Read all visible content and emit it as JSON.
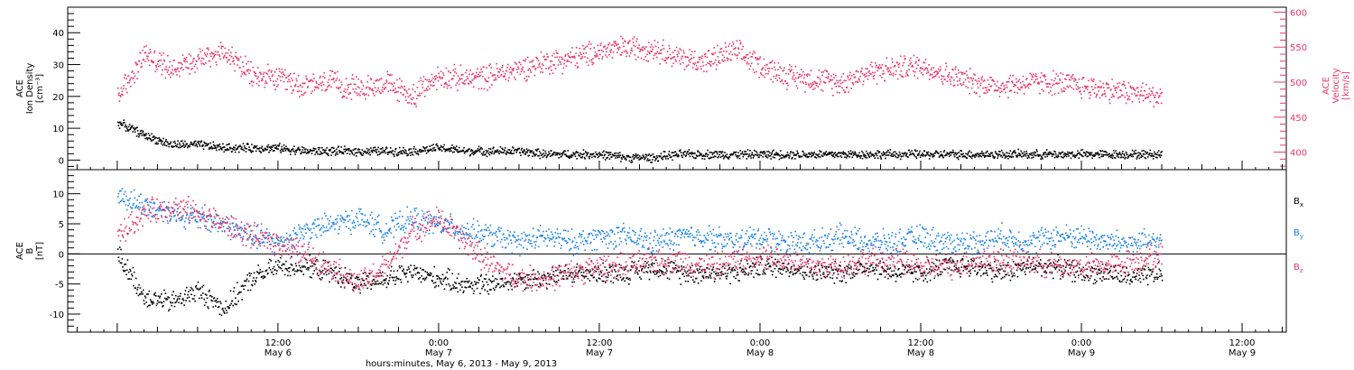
{
  "colors": {
    "axis": "#000000",
    "velocity": "#e8366b",
    "bx": "#000000",
    "by": "#1a82e6",
    "bz": "#e8366b"
  },
  "chart_data": [
    {
      "type": "scatter",
      "panel": "top",
      "ylabel_left": [
        "ACE",
        "Ion Density",
        "[cm⁻³]"
      ],
      "ylabel_right": [
        "ACE",
        "Velocity",
        "[km/s]"
      ],
      "ylim": [
        -3,
        48
      ],
      "y_ticks": [
        "0",
        "10",
        "20",
        "30",
        "40"
      ],
      "y2lim": [
        375,
        607
      ],
      "y2_ticks": [
        "400",
        "450",
        "500",
        "550",
        "600"
      ],
      "grid": false,
      "series": [
        {
          "name": "Ion Density",
          "axis": "left",
          "color": "#000000",
          "x": [
            0,
            2,
            4,
            6,
            8,
            10,
            12,
            14,
            16,
            18,
            20,
            22,
            24,
            26,
            28,
            30,
            32,
            34,
            36,
            38,
            40,
            42,
            44,
            46,
            48,
            50,
            52,
            54,
            56,
            58,
            60,
            62,
            64,
            66,
            68,
            70,
            72,
            74,
            76,
            78
          ],
          "y": [
            12,
            8,
            5,
            5,
            4,
            4,
            4,
            3,
            3,
            3,
            3,
            3,
            4,
            3,
            3,
            3,
            2,
            2,
            2,
            1,
            1,
            2,
            2,
            2,
            2,
            2,
            2,
            2,
            2,
            2,
            2,
            2,
            2,
            2,
            2,
            2,
            2,
            2,
            2,
            2
          ]
        },
        {
          "name": "Velocity",
          "axis": "right",
          "color": "#e8366b",
          "x": [
            0,
            2,
            4,
            6,
            8,
            10,
            12,
            14,
            16,
            18,
            20,
            22,
            24,
            26,
            28,
            30,
            32,
            34,
            36,
            38,
            40,
            42,
            44,
            46,
            48,
            50,
            52,
            54,
            56,
            58,
            60,
            62,
            64,
            66,
            68,
            70,
            72,
            74,
            76,
            78
          ],
          "y": [
            480,
            540,
            520,
            535,
            545,
            510,
            505,
            495,
            500,
            490,
            500,
            480,
            510,
            505,
            510,
            520,
            530,
            535,
            545,
            550,
            550,
            535,
            530,
            545,
            525,
            510,
            505,
            500,
            515,
            520,
            525,
            510,
            500,
            495,
            500,
            500,
            495,
            490,
            485,
            480
          ]
        }
      ]
    },
    {
      "type": "scatter",
      "panel": "bottom",
      "ylabel_left": [
        "ACE",
        "B",
        "[nT]"
      ],
      "ylim": [
        -13,
        14
      ],
      "y_ticks": [
        "-10",
        "-5",
        "0",
        "5",
        "10"
      ],
      "zero_line": true,
      "grid": false,
      "legend_placement": "right",
      "legend": [
        {
          "label": "B",
          "sub": "x",
          "color": "#000000"
        },
        {
          "label": "B",
          "sub": "y",
          "color": "#1a82e6"
        },
        {
          "label": "B",
          "sub": "z",
          "color": "#e8366b"
        }
      ],
      "series": [
        {
          "name": "Bx",
          "color": "#000000",
          "x": [
            0,
            2,
            4,
            6,
            8,
            10,
            12,
            14,
            16,
            18,
            20,
            22,
            24,
            26,
            28,
            30,
            32,
            34,
            36,
            38,
            40,
            42,
            44,
            46,
            48,
            50,
            52,
            54,
            56,
            58,
            60,
            62,
            64,
            66,
            68,
            70,
            72,
            74,
            76,
            78
          ],
          "y": [
            0,
            -7,
            -8,
            -6,
            -9,
            -4,
            -2,
            -2,
            -3,
            -5,
            -4,
            -3,
            -4,
            -5,
            -5,
            -4,
            -4,
            -3,
            -3,
            -3,
            -2,
            -3,
            -3,
            -3,
            -2,
            -2,
            -3,
            -3,
            -2,
            -3,
            -3,
            -2,
            -2,
            -3,
            -2,
            -2,
            -3,
            -3,
            -4,
            -3
          ]
        },
        {
          "name": "By",
          "color": "#1a82e6",
          "x": [
            0,
            2,
            4,
            6,
            8,
            10,
            12,
            14,
            16,
            18,
            20,
            22,
            24,
            26,
            28,
            30,
            32,
            34,
            36,
            38,
            40,
            42,
            44,
            46,
            48,
            50,
            52,
            54,
            56,
            58,
            60,
            62,
            64,
            66,
            68,
            70,
            72,
            74,
            76,
            78
          ],
          "y": [
            10,
            8,
            7,
            6,
            5,
            3,
            2,
            4,
            5,
            6,
            4,
            6,
            5,
            4,
            3,
            2,
            3,
            2,
            3,
            3,
            2,
            3,
            3,
            2,
            3,
            2,
            2,
            3,
            2,
            2,
            3,
            2,
            2,
            3,
            2,
            3,
            3,
            2,
            2,
            2
          ]
        },
        {
          "name": "Bz",
          "color": "#e8366b",
          "x": [
            0,
            2,
            4,
            6,
            8,
            10,
            12,
            14,
            16,
            18,
            20,
            22,
            24,
            26,
            28,
            30,
            32,
            34,
            36,
            38,
            40,
            42,
            44,
            46,
            48,
            50,
            52,
            54,
            56,
            58,
            60,
            62,
            64,
            66,
            68,
            70,
            72,
            74,
            76,
            78
          ],
          "y": [
            3,
            7,
            8,
            7,
            5,
            3,
            2,
            0,
            -2,
            -5,
            -2,
            4,
            6,
            2,
            -2,
            -4,
            -4,
            -3,
            -2,
            -2,
            -1,
            -1,
            -2,
            -1,
            0,
            -1,
            -2,
            -2,
            -1,
            -1,
            -2,
            -2,
            -1,
            -1,
            -1,
            -2,
            -2,
            -2,
            -1,
            0
          ]
        }
      ]
    }
  ],
  "x_axis": {
    "ticks": [
      {
        "hours": 12,
        "time": "12:00",
        "day": "May 6"
      },
      {
        "hours": 24,
        "time": "0:00",
        "day": "May 7"
      },
      {
        "hours": 36,
        "time": "12:00",
        "day": "May 7"
      },
      {
        "hours": 48,
        "time": "0:00",
        "day": "May 8"
      },
      {
        "hours": 60,
        "time": "12:00",
        "day": "May 8"
      },
      {
        "hours": 72,
        "time": "0:00",
        "day": "May 9"
      },
      {
        "hours": 84,
        "time": "12:00",
        "day": "May 9"
      }
    ],
    "title": "hours:minutes, May  6, 2013 - May  9, 2013"
  }
}
